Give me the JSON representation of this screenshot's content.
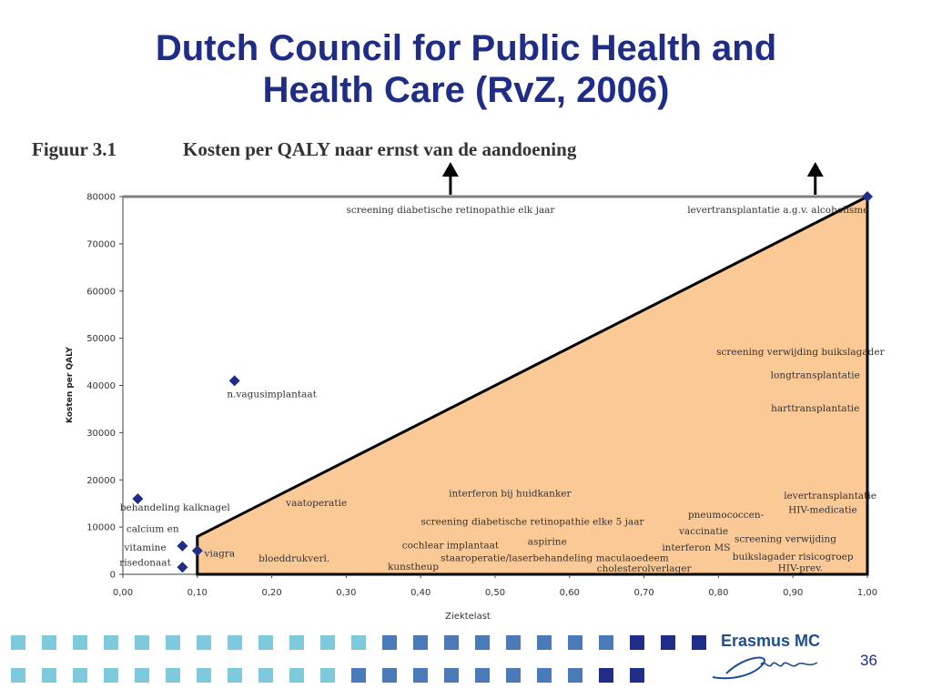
{
  "slide": {
    "title_line1": "Dutch Council for Public Health and",
    "title_line2": "Health Care (RvZ, 2006)",
    "page_number": "36"
  },
  "figure": {
    "number": "Figuur 3.1",
    "title": "Kosten per QALY naar ernst van de aandoening"
  },
  "logo": {
    "text": "Erasmus MC",
    "script_text": "zafing"
  },
  "colors": {
    "title": "#1f2d86",
    "marker": "#1f2d86",
    "fill": "#fbc996",
    "frame": "#7f7f7f",
    "square_light": "#7fc9dc",
    "square_mid": "#4a7ab8",
    "square_dark": "#1f2d86"
  },
  "chart_data": {
    "type": "scatter",
    "xlabel": "Ziektelast",
    "ylabel": "Kosten per QALY",
    "xlim": [
      0,
      1
    ],
    "ylim": [
      0,
      80000
    ],
    "x_ticks": [
      "0,00",
      "0,10",
      "0,20",
      "0,30",
      "0,40",
      "0,50",
      "0,60",
      "0,70",
      "0,80",
      "0,90",
      "1,00"
    ],
    "y_ticks": [
      "0",
      "10000",
      "20000",
      "30000",
      "40000",
      "50000",
      "60000",
      "70000",
      "80000"
    ],
    "grid": false,
    "region": {
      "shape": "triangle",
      "from": [
        0.1,
        0
      ],
      "start_top": [
        0.1,
        8000
      ],
      "to": [
        1.0,
        80000
      ]
    },
    "arrows_above_plot_at_x": [
      0.44,
      0.93
    ],
    "points": [
      {
        "x": 0.02,
        "y": 16000
      },
      {
        "x": 0.08,
        "y": 6000
      },
      {
        "x": 0.08,
        "y": 1500
      },
      {
        "x": 0.1,
        "y": 5000
      },
      {
        "x": 0.15,
        "y": 41000
      },
      {
        "x": 1.0,
        "y": 80000
      }
    ],
    "annotations": [
      {
        "text": "screening diabetische retinopathie elk jaar",
        "x": 0.44,
        "y": 76500
      },
      {
        "text": "levertransplantatie a.g.v. alcoholisme",
        "x": 0.88,
        "y": 76500
      },
      {
        "text": "screening verwijding buikslagader",
        "x": 0.91,
        "y": 46500
      },
      {
        "text": "longtransplantatie",
        "x": 0.93,
        "y": 41500
      },
      {
        "text": "harttransplantatie",
        "x": 0.93,
        "y": 34500
      },
      {
        "text": "n.vagusimplantaat",
        "x": 0.2,
        "y": 37500
      },
      {
        "text": "interferon bij huidkanker",
        "x": 0.52,
        "y": 16500
      },
      {
        "text": "levertransplantatie",
        "x": 0.95,
        "y": 16000
      },
      {
        "text": "HIV-medicatie",
        "x": 0.94,
        "y": 13000
      },
      {
        "text": "behandeling kalknagel",
        "x": 0.07,
        "y": 13500
      },
      {
        "text": "vaatoperatie",
        "x": 0.26,
        "y": 14500
      },
      {
        "text": "pneumococcen-",
        "x": 0.81,
        "y": 12000
      },
      {
        "text": "vaccinatie",
        "x": 0.78,
        "y": 8500
      },
      {
        "text": "screening diabetische retinopathie elke 5 jaar",
        "x": 0.55,
        "y": 10500
      },
      {
        "text": "calcium en",
        "x": 0.04,
        "y": 9000
      },
      {
        "text": "screening verwijding",
        "x": 0.89,
        "y": 6800
      },
      {
        "text": "aspirine",
        "x": 0.57,
        "y": 6300
      },
      {
        "text": "cochlear implantaat",
        "x": 0.44,
        "y": 5500
      },
      {
        "text": "interferon MS",
        "x": 0.77,
        "y": 5000
      },
      {
        "text": "vitamine",
        "x": 0.03,
        "y": 5000
      },
      {
        "text": "viagra",
        "x": 0.13,
        "y": 3800
      },
      {
        "text": "bloeddrukverl.",
        "x": 0.23,
        "y": 2700
      },
      {
        "text": "staaroperatie/laserbehandeling maculaoedeem",
        "x": 0.58,
        "y": 2800
      },
      {
        "text": "buikslagader risicogroep",
        "x": 0.9,
        "y": 3100
      },
      {
        "text": "risedonaat",
        "x": 0.03,
        "y": 1800
      },
      {
        "text": "kunstheup",
        "x": 0.39,
        "y": 1000
      },
      {
        "text": "cholesterolverlager",
        "x": 0.7,
        "y": 600
      },
      {
        "text": "HIV-prev.",
        "x": 0.91,
        "y": 700
      }
    ]
  }
}
